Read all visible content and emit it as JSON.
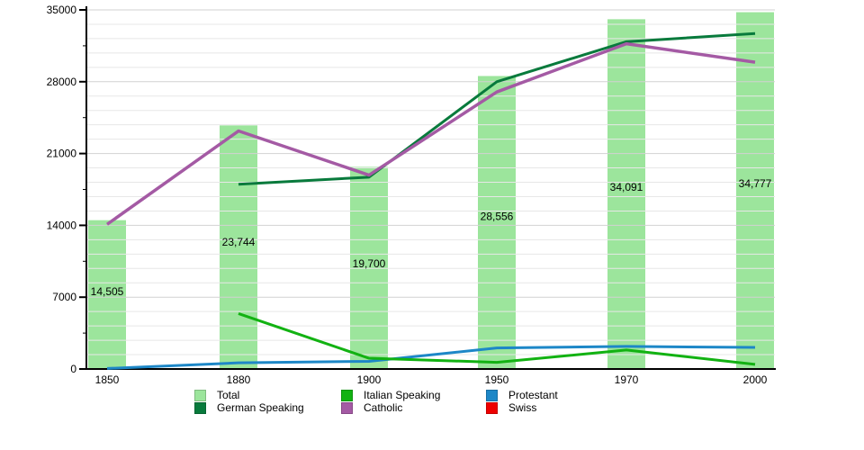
{
  "page": {
    "background": "#ffffff"
  },
  "chart_data": {
    "type": "combo",
    "title": "",
    "xlabel": "",
    "ylabel": "",
    "categories": [
      "1850",
      "1880",
      "1900",
      "1950",
      "1970",
      "2000"
    ],
    "bar_series": {
      "name": "Total",
      "color": "#9ce59c",
      "values": [
        14505,
        23744,
        19700,
        28556,
        34091,
        34777
      ],
      "labels": [
        "14,505",
        "23,744",
        "19,700",
        "28,556",
        "34,091",
        "34,777"
      ]
    },
    "line_series": [
      {
        "name": "Protestant",
        "color": "#1d87c7",
        "stroke_width": 3,
        "values": [
          50,
          600,
          750,
          2050,
          2200,
          2100
        ]
      },
      {
        "name": "Italian Speaking",
        "color": "#12b212",
        "stroke_width": 3,
        "values": [
          null,
          5400,
          1050,
          650,
          1850,
          450
        ]
      },
      {
        "name": "German Speaking",
        "color": "#087a3c",
        "stroke_width": 3,
        "values": [
          null,
          18000,
          18700,
          28000,
          31900,
          32700
        ]
      },
      {
        "name": "Catholic",
        "color": "#a45aa4",
        "stroke_width": 3.5,
        "values": [
          14100,
          23200,
          18900,
          27000,
          31700,
          29900
        ]
      },
      {
        "name": "Swiss",
        "color": "#ee0000",
        "stroke_width": 3,
        "values": [
          null,
          null,
          null,
          null,
          null,
          null
        ],
        "note": "legend entry only - no line visible in plot"
      }
    ],
    "y_axis": {
      "min": 0,
      "max": 35000,
      "major_tick": 7000,
      "half_tick": 3500,
      "minor_grid": 1400,
      "tick_labels": [
        "0",
        "7000",
        "14000",
        "21000",
        "28000",
        "35000"
      ]
    },
    "grid": {
      "horizontal": true,
      "vertical": false
    },
    "legend": {
      "position": "bottom",
      "items": [
        {
          "label": "Total",
          "color": "#9ce59c"
        },
        {
          "label": "Italian Speaking",
          "color": "#12b212"
        },
        {
          "label": "Protestant",
          "color": "#1d87c7"
        },
        {
          "label": "German Speaking",
          "color": "#087a3c"
        },
        {
          "label": "Catholic",
          "color": "#a45aa4"
        },
        {
          "label": "Swiss",
          "color": "#ee0000"
        }
      ]
    }
  }
}
